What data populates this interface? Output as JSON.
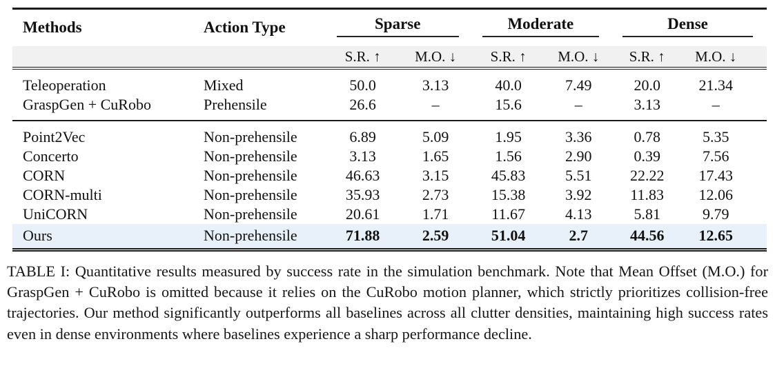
{
  "colors": {
    "rule": "#1a1a1a",
    "subheader_band_bg": "#f1f1f1",
    "highlight_row_bg": "#e8f1fa",
    "text": "#111111"
  },
  "table": {
    "header": {
      "methods": "Methods",
      "action_type": "Action Type",
      "groups": [
        "Sparse",
        "Moderate",
        "Dense"
      ],
      "metrics": [
        "S.R. ↑",
        "M.O. ↓"
      ]
    },
    "rows": [
      {
        "method": "Teleoperation",
        "action_type": "Mixed",
        "values": [
          "50.0",
          "3.13",
          "40.0",
          "7.49",
          "20.0",
          "21.34"
        ]
      },
      {
        "method": "GraspGen + CuRobo",
        "action_type": "Prehensile",
        "values": [
          "26.6",
          "–",
          "15.6",
          "–",
          "3.13",
          "–"
        ]
      },
      {
        "method": "Point2Vec",
        "action_type": "Non-prehensile",
        "values": [
          "6.89",
          "5.09",
          "1.95",
          "3.36",
          "0.78",
          "5.35"
        ]
      },
      {
        "method": "Concerto",
        "action_type": "Non-prehensile",
        "values": [
          "3.13",
          "1.65",
          "1.56",
          "2.90",
          "0.39",
          "7.56"
        ]
      },
      {
        "method": "CORN",
        "action_type": "Non-prehensile",
        "values": [
          "46.63",
          "3.15",
          "45.83",
          "5.51",
          "22.22",
          "17.43"
        ]
      },
      {
        "method": "CORN-multi",
        "action_type": "Non-prehensile",
        "values": [
          "35.93",
          "2.73",
          "15.38",
          "3.92",
          "11.83",
          "12.06"
        ]
      },
      {
        "method": "UniCORN",
        "action_type": "Non-prehensile",
        "values": [
          "20.61",
          "1.71",
          "11.67",
          "4.13",
          "5.81",
          "9.79"
        ]
      },
      {
        "method": "Ours",
        "action_type": "Non-prehensile",
        "values": [
          "71.88",
          "2.59",
          "51.04",
          "2.7",
          "44.56",
          "12.65"
        ],
        "highlight": true
      }
    ]
  },
  "caption": {
    "text": "TABLE I: Quantitative results measured by success rate in the simulation benchmark. Note that Mean Offset (M.O.) for GraspGen + CuRobo is omitted because it relies on the CuRobo motion planner, which strictly prioritizes collision-free trajectories. Our method significantly outperforms all baselines across all clutter densities, maintaining high success rates even in dense environments where baselines experience a sharp performance decline."
  }
}
